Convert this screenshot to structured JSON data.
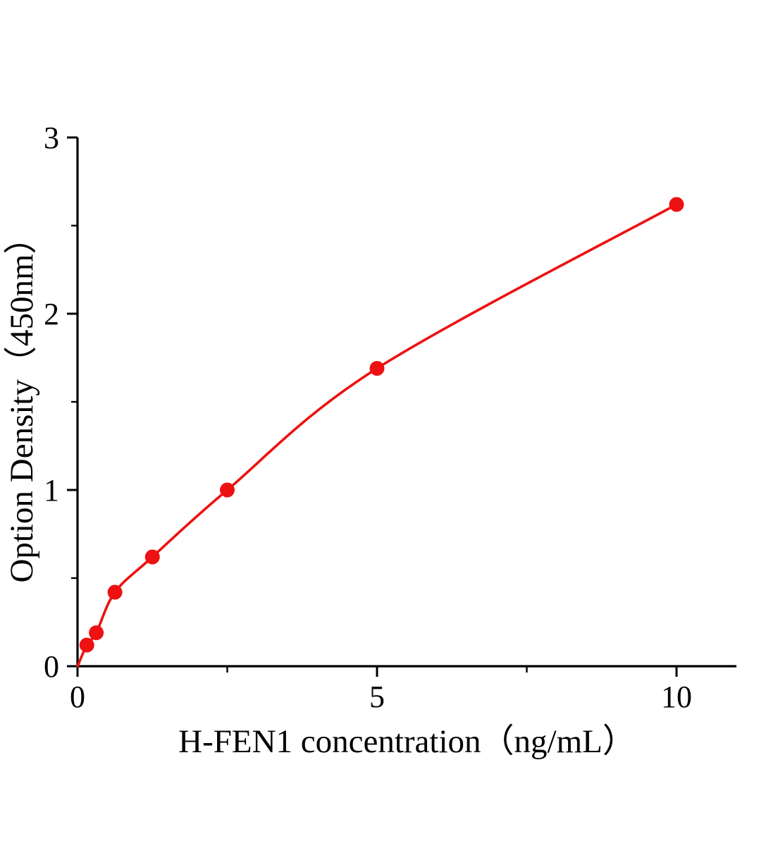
{
  "chart_data": {
    "type": "scatter",
    "title": "",
    "xlabel": "H-FEN1 concentration（ng/mL）",
    "ylabel": "Option Density（450nm）",
    "x": [
      0.156,
      0.313,
      0.625,
      1.25,
      2.5,
      5,
      10
    ],
    "y": [
      0.12,
      0.19,
      0.42,
      0.62,
      1.0,
      1.69,
      2.62
    ],
    "curve_anchor": {
      "x": 0,
      "y": 0
    },
    "xlim": [
      0,
      11
    ],
    "ylim": [
      0,
      3
    ],
    "x_major_ticks": [
      0,
      5,
      10
    ],
    "x_major_tick_labels": [
      "0",
      "5",
      "10"
    ],
    "x_minor_ticks": [
      2.5,
      7.5
    ],
    "y_major_ticks": [
      0,
      1,
      2,
      3
    ],
    "y_major_tick_labels": [
      "0",
      "1",
      "2",
      "3"
    ],
    "y_minor_ticks": [
      0.5,
      1.5,
      2.5
    ],
    "grid": false,
    "legend": null,
    "line_color": "#ed1111",
    "marker_color": "#ed1111",
    "axis_color": "#000000"
  }
}
